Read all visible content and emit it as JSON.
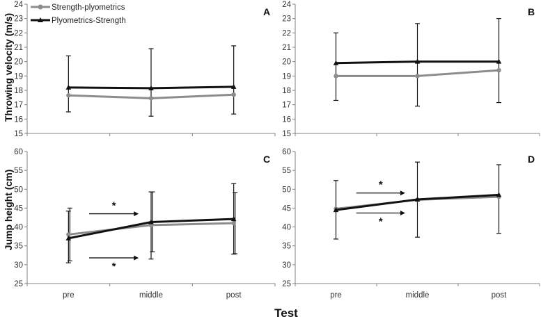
{
  "colors": {
    "strength_plyometrics": "#8c8c8c",
    "plyometrics_strength": "#111111",
    "axis": "#808080",
    "arrow": "#111111"
  },
  "y_labels": {
    "top": "Throwing velocity (m/s)",
    "bottom": "Jump height (cm)"
  },
  "x_label": "Test",
  "legend": [
    {
      "name": "Strength-plyometrics",
      "marker": "circle"
    },
    {
      "name": "Plyometrics-Strength",
      "marker": "triangle"
    }
  ],
  "chart_data": [
    {
      "type": "line",
      "panel": "A",
      "categories": [
        "pre",
        "middle",
        "post"
      ],
      "ylim": [
        15,
        24
      ],
      "yticks": [
        15,
        16,
        17,
        18,
        19,
        20,
        21,
        22,
        23,
        24
      ],
      "series": [
        {
          "name": "Strength-plyometrics",
          "values": [
            17.65,
            17.45,
            17.7
          ]
        },
        {
          "name": "Plyometrics-Strength",
          "values": [
            18.2,
            18.15,
            18.25
          ]
        }
      ],
      "error_bars": [
        {
          "series": "Plyometrics-Strength",
          "low": [
            16.5,
            16.2,
            16.35
          ],
          "high": [
            20.4,
            20.9,
            21.1
          ]
        }
      ],
      "annotations": []
    },
    {
      "type": "line",
      "panel": "B",
      "categories": [
        "pre",
        "middle",
        "post"
      ],
      "ylim": [
        15,
        24
      ],
      "yticks": [
        15,
        16,
        17,
        18,
        19,
        20,
        21,
        22,
        23,
        24
      ],
      "series": [
        {
          "name": "Strength-plyometrics",
          "values": [
            19.0,
            19.0,
            19.4
          ]
        },
        {
          "name": "Plyometrics-Strength",
          "values": [
            19.9,
            20.0,
            20.0
          ]
        }
      ],
      "error_bars": [
        {
          "series": "Plyometrics-Strength",
          "low": [
            17.3,
            16.9,
            17.15
          ],
          "high": [
            22.0,
            22.65,
            23.0
          ]
        }
      ],
      "annotations": []
    },
    {
      "type": "line",
      "panel": "C",
      "categories": [
        "pre",
        "middle",
        "post"
      ],
      "ylim": [
        25,
        60
      ],
      "yticks": [
        25,
        30,
        35,
        40,
        45,
        50,
        55,
        60
      ],
      "series": [
        {
          "name": "Strength-plyometrics",
          "values": [
            38.0,
            40.5,
            41.0
          ]
        },
        {
          "name": "Plyometrics-Strength",
          "values": [
            37.0,
            41.3,
            42.1
          ]
        }
      ],
      "error_bars": [
        {
          "series": "Strength-plyometrics",
          "low": [
            31.0,
            33.4,
            32.9
          ],
          "high": [
            45.0,
            49.3,
            49.1
          ]
        },
        {
          "series": "Plyometrics-Strength",
          "low": [
            30.5,
            31.5,
            32.8
          ],
          "high": [
            44.2,
            49.3,
            51.5
          ]
        }
      ],
      "annotations": [
        {
          "label": "*",
          "y": 43.5,
          "from": 0.25,
          "to": 0.85
        },
        {
          "label": "*",
          "y": 31.8,
          "from": 0.25,
          "to": 0.85
        }
      ]
    },
    {
      "type": "line",
      "panel": "D",
      "categories": [
        "pre",
        "middle",
        "post"
      ],
      "ylim": [
        25,
        60
      ],
      "yticks": [
        25,
        30,
        35,
        40,
        45,
        50,
        55,
        60
      ],
      "series": [
        {
          "name": "Strength-plyometrics",
          "values": [
            44.8,
            47.2,
            48.0
          ]
        },
        {
          "name": "Plyometrics-Strength",
          "values": [
            44.5,
            47.3,
            48.5
          ]
        }
      ],
      "error_bars": [
        {
          "series": "Plyometrics-Strength",
          "low": [
            36.8,
            37.3,
            38.3
          ],
          "high": [
            52.3,
            57.2,
            56.5
          ]
        }
      ],
      "annotations": [
        {
          "label": "*",
          "y": 49.0,
          "from": 0.25,
          "to": 0.85
        },
        {
          "label": "*",
          "y": 43.7,
          "from": 0.25,
          "to": 0.85
        }
      ]
    }
  ]
}
